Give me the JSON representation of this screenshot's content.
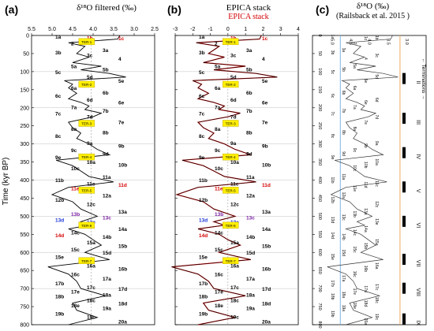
{
  "panels": [
    {
      "letter": "(a)",
      "title": "δ¹⁸O filtered (‰)"
    },
    {
      "letter": "(b)",
      "title": "EPICA stack",
      "title2": "EPICA stack"
    },
    {
      "letter": "(c)",
      "title": "δ¹⁸O (‰)",
      "title2": "(Railsback et al. 2015 )"
    }
  ],
  "y_axis_label": "Time (kyr BP)",
  "chart_data": [
    {
      "type": "line",
      "panel": "a",
      "xlim": [
        5.5,
        2.5
      ],
      "ylim": [
        0,
        800
      ],
      "x_ticks": [
        5.5,
        5.0,
        4.5,
        4.0,
        3.5,
        3.0,
        2.5
      ],
      "y_ticks": [
        0,
        50,
        100,
        150,
        200,
        250,
        300,
        350,
        400,
        450,
        500,
        550,
        600,
        650,
        700,
        750,
        800
      ],
      "series": [
        {
          "y": [
            0,
            10,
            20,
            30,
            40,
            50,
            60,
            75,
            85,
            95,
            105,
            115,
            125,
            135,
            145,
            160,
            175,
            185,
            195,
            205,
            215,
            225,
            240,
            255,
            270,
            285,
            300,
            315,
            330,
            345,
            360,
            375,
            390,
            405,
            420,
            440,
            460,
            480,
            500,
            515,
            525,
            535,
            550,
            565,
            580,
            600,
            620,
            640,
            660,
            680,
            700,
            720,
            740,
            760,
            780,
            800
          ],
          "x": [
            3.35,
            3.4,
            4.6,
            4.2,
            4.3,
            4.4,
            4.1,
            4.5,
            3.8,
            4.3,
            3.6,
            3.2,
            4.7,
            4.5,
            4.6,
            4.4,
            4.6,
            4.3,
            4.1,
            4.2,
            3.8,
            4.0,
            4.6,
            4.5,
            4.3,
            4.4,
            4.1,
            3.9,
            3.6,
            4.9,
            4.5,
            4.3,
            4.1,
            3.5,
            4.6,
            5.0,
            4.5,
            4.3,
            3.9,
            4.3,
            4.1,
            4.6,
            4.2,
            4.0,
            3.8,
            4.2,
            3.6,
            5.1,
            4.6,
            4.4,
            4.3,
            3.7,
            4.5,
            4.4,
            3.9,
            4.6
          ]
        }
      ],
      "labels": [
        {
          "text": "1a",
          "y": 3
        },
        {
          "text": "1b",
          "y": 6
        },
        {
          "text": "1c",
          "y": 8
        },
        {
          "text": "2",
          "y": 22
        },
        {
          "text": "3a",
          "y": 40
        },
        {
          "text": "3b",
          "y": 47
        },
        {
          "text": "3c",
          "y": 55
        },
        {
          "text": "4",
          "y": 64
        },
        {
          "text": "5a",
          "y": 85
        },
        {
          "text": "5b",
          "y": 94
        },
        {
          "text": "5c",
          "y": 101
        },
        {
          "text": "5d",
          "y": 114
        },
        {
          "text": "5e",
          "y": 125
        },
        {
          "text": "6a",
          "y": 145
        },
        {
          "text": "6b",
          "y": 158
        },
        {
          "text": "6c",
          "y": 167
        },
        {
          "text": "6d",
          "y": 178
        },
        {
          "text": "6e",
          "y": 185
        },
        {
          "text": "7a",
          "y": 198
        },
        {
          "text": "7b",
          "y": 208
        },
        {
          "text": "7c",
          "y": 216
        },
        {
          "text": "7d",
          "y": 225
        },
        {
          "text": "7e",
          "y": 240
        },
        {
          "text": "8a",
          "y": 258
        },
        {
          "text": "8b",
          "y": 268
        },
        {
          "text": "8c",
          "y": 278
        },
        {
          "text": "9a",
          "y": 298
        },
        {
          "text": "9b",
          "y": 305
        },
        {
          "text": "9c",
          "y": 317
        },
        {
          "text": "9d",
          "y": 327
        },
        {
          "text": "9e",
          "y": 337
        },
        {
          "text": "10a",
          "y": 350
        },
        {
          "text": "10b",
          "y": 358
        },
        {
          "text": "10c",
          "y": 367
        },
        {
          "text": "11a",
          "y": 391
        },
        {
          "text": "11b",
          "y": 400
        },
        {
          "text": "11c",
          "y": 410
        },
        {
          "text": "11d",
          "y": 413
        },
        {
          "text": "11e",
          "y": 423
        },
        {
          "text": "12a",
          "y": 442
        },
        {
          "text": "12b",
          "y": 455
        },
        {
          "text": "12c",
          "y": 467
        },
        {
          "text": "13a",
          "y": 487
        },
        {
          "text": "13b",
          "y": 494
        },
        {
          "text": "13c",
          "y": 503
        },
        {
          "text": "13d",
          "y": 510
        },
        {
          "text": "13e",
          "y": 515
        },
        {
          "text": "14a",
          "y": 535
        },
        {
          "text": "14c",
          "y": 545
        },
        {
          "text": "14b",
          "y": 557
        },
        {
          "text": "14d",
          "y": 553
        },
        {
          "text": "15a",
          "y": 572
        },
        {
          "text": "15b",
          "y": 582
        },
        {
          "text": "15c",
          "y": 592
        },
        {
          "text": "15d",
          "y": 601
        },
        {
          "text": "15e",
          "y": 612
        },
        {
          "text": "16a",
          "y": 637
        },
        {
          "text": "16b",
          "y": 645
        },
        {
          "text": "16c",
          "y": 660
        },
        {
          "text": "17a",
          "y": 672
        },
        {
          "text": "17b",
          "y": 686
        },
        {
          "text": "17c",
          "y": 696
        },
        {
          "text": "17d",
          "y": 701
        },
        {
          "text": "17e",
          "y": 708
        },
        {
          "text": "18a",
          "y": 717
        },
        {
          "text": "18b",
          "y": 722
        },
        {
          "text": "18c",
          "y": 732
        },
        {
          "text": "18d",
          "y": 741
        },
        {
          "text": "18e",
          "y": 747
        },
        {
          "text": "19a",
          "y": 754
        },
        {
          "text": "19b",
          "y": 770
        },
        {
          "text": "19c",
          "y": 778
        },
        {
          "text": "20a",
          "y": 791
        }
      ],
      "ter_boxes": [
        {
          "text": "TER-1",
          "y": 17
        },
        {
          "text": "TER-2",
          "y": 135
        },
        {
          "text": "TER-3",
          "y": 243
        },
        {
          "text": "TER-4",
          "y": 336
        },
        {
          "text": "TER-5",
          "y": 428
        },
        {
          "text": "TER-6",
          "y": 525
        },
        {
          "text": "TER-7",
          "y": 623
        }
      ]
    },
    {
      "type": "line",
      "panel": "b",
      "xlim": [
        -3,
        4
      ],
      "ylim": [
        0,
        800
      ],
      "x_ticks": [
        -3,
        -2,
        -1,
        0,
        1,
        2,
        3,
        4
      ],
      "y_ticks": [
        0,
        50,
        100,
        150,
        200,
        250,
        300,
        350,
        400,
        450,
        500,
        550,
        600,
        650,
        700,
        750,
        800
      ],
      "series": [
        {
          "name": "EPICA stack",
          "y": [
            0,
            10,
            20,
            30,
            40,
            50,
            60,
            75,
            85,
            95,
            105,
            115,
            125,
            135,
            145,
            160,
            175,
            185,
            195,
            205,
            215,
            225,
            240,
            255,
            270,
            285,
            300,
            315,
            330,
            345,
            360,
            375,
            390,
            405,
            420,
            440,
            460,
            480,
            500,
            515,
            525,
            535,
            550,
            565,
            580,
            600,
            620,
            640,
            660,
            680,
            700,
            720,
            740,
            760,
            780,
            800
          ],
          "x": [
            1.9,
            1.8,
            -1.8,
            -0.5,
            -0.8,
            -1.1,
            -0.2,
            -1.4,
            1.0,
            -0.8,
            1.6,
            2.8,
            -2.0,
            -1.5,
            -1.7,
            -1.1,
            -1.7,
            -0.8,
            -0.2,
            -0.5,
            0.7,
            0.0,
            -1.7,
            -1.4,
            -0.8,
            -1.1,
            -0.2,
            0.4,
            1.3,
            -2.6,
            -1.4,
            -0.8,
            -0.2,
            1.6,
            -1.7,
            -2.9,
            -1.4,
            -0.8,
            0.4,
            -0.8,
            -0.2,
            -1.7,
            -0.5,
            0.0,
            0.7,
            -0.5,
            1.3,
            -3.2,
            -1.7,
            -1.1,
            -0.8,
            1.0,
            -1.4,
            -1.1,
            0.4,
            -1.7
          ]
        }
      ]
    },
    {
      "type": "line",
      "panel": "c",
      "ylim": [
        0,
        800
      ],
      "y_ticks": [
        0,
        50,
        100,
        150,
        200,
        250,
        300,
        350,
        400,
        450,
        500,
        550,
        600,
        650,
        700,
        750,
        800
      ],
      "x_ticks": [
        "5.0",
        "4.5",
        "4.0",
        "3.5",
        "3.0"
      ],
      "roman_numerals": [
        {
          "text": "II",
          "y": 130
        },
        {
          "text": "III",
          "y": 240
        },
        {
          "text": "IV",
          "y": 335
        },
        {
          "text": "V",
          "y": 430
        },
        {
          "text": "VI",
          "y": 525
        },
        {
          "text": "VII",
          "y": 630
        },
        {
          "text": "VIII",
          "y": 710
        },
        {
          "text": "IX",
          "y": 795
        }
      ],
      "side_label": "← Terminations →",
      "series": [
        {
          "y": [
            0,
            10,
            20,
            30,
            40,
            50,
            60,
            75,
            85,
            95,
            105,
            115,
            125,
            135,
            145,
            160,
            175,
            185,
            195,
            205,
            215,
            225,
            240,
            255,
            270,
            285,
            300,
            315,
            330,
            345,
            360,
            375,
            390,
            405,
            420,
            440,
            460,
            480,
            500,
            515,
            525,
            535,
            550,
            565,
            580,
            600,
            620,
            640,
            660,
            680,
            700,
            720,
            740,
            760,
            780,
            800
          ],
          "x": [
            3.35,
            3.4,
            4.6,
            4.2,
            4.3,
            4.4,
            4.1,
            4.5,
            3.8,
            4.3,
            3.6,
            3.2,
            4.7,
            4.5,
            4.6,
            4.4,
            4.6,
            4.3,
            4.1,
            4.2,
            3.8,
            4.0,
            4.6,
            4.5,
            4.3,
            4.4,
            4.1,
            3.9,
            3.6,
            4.9,
            4.5,
            4.3,
            4.1,
            3.5,
            4.6,
            5.0,
            4.5,
            4.3,
            3.9,
            4.3,
            4.1,
            4.6,
            4.2,
            4.0,
            3.8,
            4.2,
            3.6,
            5.1,
            4.6,
            4.4,
            4.3,
            3.7,
            4.5,
            4.4,
            3.9,
            4.6
          ]
        }
      ]
    }
  ]
}
